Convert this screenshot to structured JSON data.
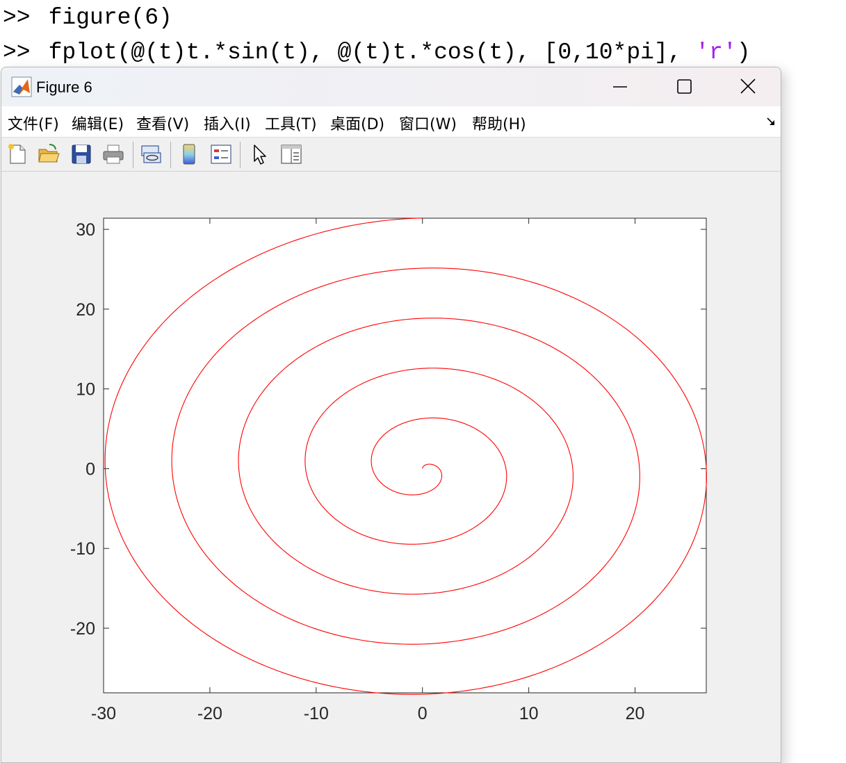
{
  "console": {
    "prompt": ">>",
    "line1": "figure(6)",
    "line2_code": "fplot(@(t)t.*sin(t), @(t)t.*cos(t), [0,10*pi], ",
    "line2_string": "'r'",
    "line2_end": ")"
  },
  "window": {
    "title": "Figure 6",
    "icon": "matlab-icon",
    "controls": [
      "minimize-icon",
      "maximize-icon",
      "close-icon"
    ]
  },
  "menu": {
    "items": [
      "文件(F)",
      "编辑(E)",
      "查看(V)",
      "插入(I)",
      "工具(T)",
      "桌面(D)",
      "窗口(W)",
      "帮助(H)"
    ]
  },
  "toolbar": {
    "buttons": [
      "new-figure-icon",
      "open-file-icon",
      "save-icon",
      "print-icon",
      "link-plot-icon",
      "colorbar-icon",
      "legend-icon",
      "edit-plot-arrow-icon",
      "property-inspector-icon"
    ]
  },
  "chart_data": {
    "type": "line",
    "title": "",
    "xlabel": "",
    "ylabel": "",
    "parametric": {
      "x": "t*sin(t)",
      "y": "t*cos(t)",
      "t_range": [
        0,
        31.4159
      ]
    },
    "series": [
      {
        "color": "#ff0000"
      }
    ],
    "xlim": [
      -30,
      26.7
    ],
    "ylim": [
      -28.1,
      31.4
    ],
    "xticks": [
      "-30",
      "-20",
      "-10",
      "0",
      "10",
      "20"
    ],
    "yticks": [
      "30",
      "20",
      "10",
      "0",
      "-10",
      "-20"
    ],
    "xtick_values": [
      -30,
      -20,
      -10,
      0,
      10,
      20
    ],
    "ytick_values": [
      30,
      20,
      10,
      0,
      -10,
      -20
    ],
    "grid": false,
    "box": true
  }
}
